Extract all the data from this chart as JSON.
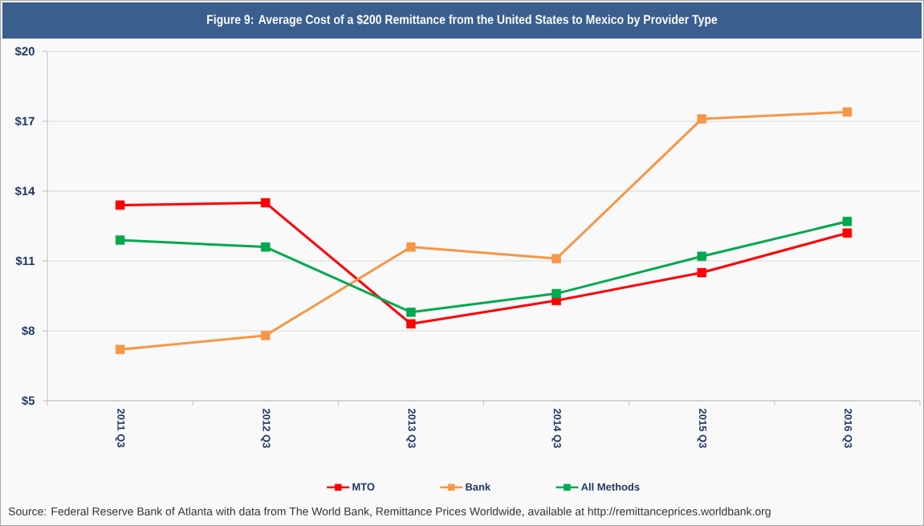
{
  "chart_data": {
    "type": "line",
    "title": "Figure 9: Average Cost of a $200 Remittance from the United States to Mexico by Provider Type",
    "categories": [
      "2011 Q3",
      "2012 Q3",
      "2013 Q3",
      "2014 Q3",
      "2015 Q3",
      "2016 Q3"
    ],
    "series": [
      {
        "name": "MTO",
        "color": "#ff0000",
        "values": [
          13.4,
          13.5,
          8.3,
          9.3,
          10.5,
          12.2
        ]
      },
      {
        "name": "Bank",
        "color": "#f79646",
        "values": [
          7.2,
          7.8,
          11.6,
          11.1,
          17.1,
          17.4
        ]
      },
      {
        "name": "All Methods",
        "color": "#00a84f",
        "values": [
          11.9,
          11.6,
          8.8,
          9.6,
          11.2,
          12.7
        ]
      }
    ],
    "ylim": [
      5,
      20
    ],
    "yticks": [
      {
        "value": 5,
        "label": "$5"
      },
      {
        "value": 8,
        "label": "$8"
      },
      {
        "value": 11,
        "label": "$11"
      },
      {
        "value": 14,
        "label": "$14"
      },
      {
        "value": 17,
        "label": "$17"
      },
      {
        "value": 20,
        "label": "$20"
      }
    ],
    "grid": "y",
    "legend": "bottom",
    "marker": "square",
    "line_style": "solid",
    "annotations": [
      "Source: Federal Reserve Bank of Atlanta with data from The World Bank, Remittance Prices Worldwide, available at http://remittanceprices.worldbank.org"
    ]
  }
}
